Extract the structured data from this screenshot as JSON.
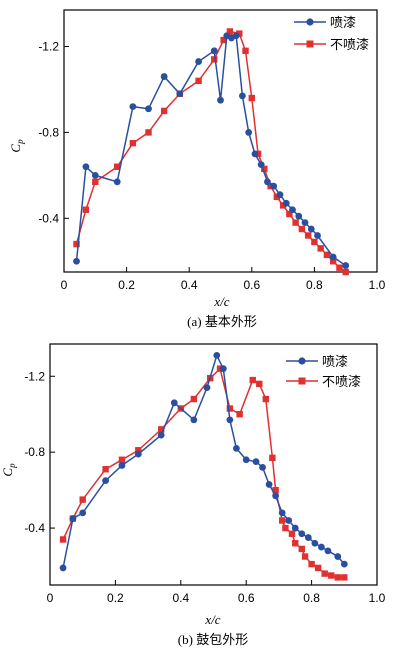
{
  "chart_data": [
    {
      "type": "line",
      "caption": "(a) 基本外形",
      "xlabel": "x/c",
      "ylabel": "Cp",
      "ylabel_main": "C",
      "ylabel_sub": "p",
      "xlim": [
        0,
        1.0
      ],
      "ylim": [
        -0.15,
        -1.37
      ],
      "y_inverted": true,
      "xticks": [
        0,
        0.2,
        0.4,
        0.6,
        0.8,
        1.0
      ],
      "xtick_labels": [
        "0",
        "0.2",
        "0.4",
        "0.6",
        "0.8",
        "1.0"
      ],
      "yticks": [
        -0.4,
        -0.8,
        -1.2
      ],
      "ytick_labels": [
        "-0.4",
        "-0.8",
        "-1.2"
      ],
      "legend_position": "top-right",
      "colors": {
        "penqi": "#2a4f9f",
        "bupenqi": "#e03030"
      },
      "series": [
        {
          "name": "喷漆",
          "marker": "circle",
          "color": "#2a4f9f",
          "x": [
            0.04,
            0.07,
            0.1,
            0.17,
            0.22,
            0.27,
            0.32,
            0.37,
            0.43,
            0.48,
            0.5,
            0.52,
            0.535,
            0.55,
            0.57,
            0.59,
            0.61,
            0.63,
            0.65,
            0.67,
            0.69,
            0.71,
            0.73,
            0.75,
            0.77,
            0.79,
            0.81,
            0.86,
            0.9
          ],
          "y": [
            -0.2,
            -0.64,
            -0.6,
            -0.57,
            -0.92,
            -0.91,
            -1.06,
            -0.98,
            -1.13,
            -1.18,
            -0.95,
            -1.25,
            -1.24,
            -1.25,
            -0.97,
            -0.8,
            -0.7,
            -0.65,
            -0.57,
            -0.55,
            -0.51,
            -0.47,
            -0.44,
            -0.41,
            -0.38,
            -0.35,
            -0.32,
            -0.22,
            -0.18
          ]
        },
        {
          "name": "不喷漆",
          "marker": "square",
          "color": "#e03030",
          "x": [
            0.04,
            0.07,
            0.1,
            0.17,
            0.22,
            0.27,
            0.32,
            0.37,
            0.43,
            0.48,
            0.51,
            0.53,
            0.56,
            0.58,
            0.6,
            0.62,
            0.64,
            0.66,
            0.68,
            0.7,
            0.72,
            0.74,
            0.76,
            0.78,
            0.8,
            0.82,
            0.84,
            0.86,
            0.88,
            0.9
          ],
          "y": [
            -0.28,
            -0.44,
            -0.57,
            -0.64,
            -0.75,
            -0.8,
            -0.9,
            -0.98,
            -1.04,
            -1.14,
            -1.23,
            -1.27,
            -1.26,
            -1.18,
            -0.96,
            -0.7,
            -0.63,
            -0.55,
            -0.5,
            -0.46,
            -0.42,
            -0.38,
            -0.35,
            -0.32,
            -0.29,
            -0.26,
            -0.23,
            -0.2,
            -0.17,
            -0.15
          ]
        }
      ]
    },
    {
      "type": "line",
      "caption": "(b) 鼓包外形",
      "xlabel": "x/c",
      "ylabel": "Cp",
      "ylabel_main": "C",
      "ylabel_sub": "p",
      "xlim": [
        0,
        1.0
      ],
      "ylim": [
        -0.1,
        -1.37
      ],
      "y_inverted": true,
      "xticks": [
        0,
        0.2,
        0.4,
        0.6,
        0.8,
        1.0
      ],
      "xtick_labels": [
        "0",
        "0.2",
        "0.4",
        "0.6",
        "0.8",
        "1.0"
      ],
      "yticks": [
        -0.4,
        -0.8,
        -1.2
      ],
      "ytick_labels": [
        "-0.4",
        "-0.8",
        "-1.2"
      ],
      "legend_position": "top-right",
      "colors": {
        "penqi": "#2a4f9f",
        "bupenqi": "#e03030"
      },
      "series": [
        {
          "name": "喷漆",
          "marker": "circle",
          "color": "#2a4f9f",
          "x": [
            0.04,
            0.07,
            0.1,
            0.17,
            0.22,
            0.27,
            0.34,
            0.38,
            0.44,
            0.48,
            0.51,
            0.53,
            0.55,
            0.57,
            0.6,
            0.63,
            0.65,
            0.67,
            0.69,
            0.71,
            0.73,
            0.75,
            0.77,
            0.79,
            0.81,
            0.83,
            0.85,
            0.88,
            0.9
          ],
          "y": [
            -0.19,
            -0.45,
            -0.48,
            -0.65,
            -0.73,
            -0.79,
            -0.89,
            -1.06,
            -0.97,
            -1.14,
            -1.31,
            -1.24,
            -0.97,
            -0.82,
            -0.76,
            -0.75,
            -0.72,
            -0.63,
            -0.57,
            -0.48,
            -0.44,
            -0.4,
            -0.37,
            -0.35,
            -0.32,
            -0.3,
            -0.28,
            -0.25,
            -0.21
          ]
        },
        {
          "name": "不喷漆",
          "marker": "square",
          "color": "#e03030",
          "x": [
            0.04,
            0.07,
            0.1,
            0.17,
            0.22,
            0.27,
            0.34,
            0.4,
            0.44,
            0.49,
            0.52,
            0.55,
            0.58,
            0.62,
            0.64,
            0.66,
            0.68,
            0.69,
            0.71,
            0.72,
            0.74,
            0.75,
            0.77,
            0.78,
            0.8,
            0.82,
            0.84,
            0.86,
            0.88,
            0.9
          ],
          "y": [
            -0.34,
            -0.45,
            -0.55,
            -0.71,
            -0.76,
            -0.81,
            -0.92,
            -1.03,
            -1.08,
            -1.19,
            -1.24,
            -1.03,
            -1.0,
            -1.18,
            -1.16,
            -1.08,
            -0.77,
            -0.6,
            -0.44,
            -0.4,
            -0.37,
            -0.32,
            -0.29,
            -0.25,
            -0.21,
            -0.19,
            -0.16,
            -0.15,
            -0.14,
            -0.14
          ]
        }
      ]
    }
  ]
}
